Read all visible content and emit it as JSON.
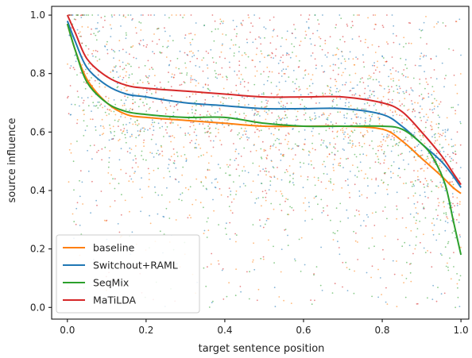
{
  "chart_data": {
    "type": "line",
    "xlabel": "target sentence position",
    "ylabel": "source influence",
    "xlim": [
      -0.04,
      1.02
    ],
    "ylim": [
      -0.04,
      1.03
    ],
    "xticks": [
      "0.0",
      "0.2",
      "0.4",
      "0.6",
      "0.8",
      "1.0"
    ],
    "yticks": [
      "0.0",
      "0.2",
      "0.4",
      "0.6",
      "0.8",
      "1.0"
    ],
    "grid": false,
    "legend_position": "lower-left",
    "series": [
      {
        "name": "baseline",
        "color": "#ff7f0e",
        "x": [
          0.0,
          0.02,
          0.05,
          0.1,
          0.15,
          0.2,
          0.3,
          0.4,
          0.5,
          0.6,
          0.7,
          0.8,
          0.85,
          0.9,
          0.95,
          0.98,
          1.0
        ],
        "y": [
          0.97,
          0.88,
          0.78,
          0.7,
          0.66,
          0.65,
          0.64,
          0.63,
          0.62,
          0.62,
          0.62,
          0.61,
          0.57,
          0.51,
          0.45,
          0.41,
          0.39
        ]
      },
      {
        "name": "Switchout+RAML",
        "color": "#1f77b4",
        "x": [
          0.0,
          0.02,
          0.05,
          0.1,
          0.15,
          0.2,
          0.3,
          0.4,
          0.5,
          0.6,
          0.7,
          0.8,
          0.85,
          0.9,
          0.95,
          0.98,
          1.0
        ],
        "y": [
          0.98,
          0.91,
          0.82,
          0.76,
          0.73,
          0.72,
          0.7,
          0.69,
          0.68,
          0.68,
          0.68,
          0.66,
          0.62,
          0.56,
          0.5,
          0.45,
          0.41
        ]
      },
      {
        "name": "SeqMix",
        "color": "#2ca02c",
        "x": [
          0.0,
          0.02,
          0.05,
          0.1,
          0.15,
          0.2,
          0.3,
          0.4,
          0.5,
          0.6,
          0.7,
          0.8,
          0.85,
          0.9,
          0.93,
          0.96,
          0.98,
          1.0
        ],
        "y": [
          0.97,
          0.88,
          0.77,
          0.7,
          0.67,
          0.66,
          0.65,
          0.65,
          0.63,
          0.62,
          0.62,
          0.62,
          0.61,
          0.56,
          0.51,
          0.42,
          0.3,
          0.18
        ]
      },
      {
        "name": "MaTiLDA",
        "color": "#d62728",
        "x": [
          0.0,
          0.02,
          0.05,
          0.1,
          0.15,
          0.2,
          0.3,
          0.4,
          0.5,
          0.6,
          0.7,
          0.8,
          0.85,
          0.9,
          0.95,
          0.98,
          1.0
        ],
        "y": [
          1.0,
          0.94,
          0.85,
          0.79,
          0.76,
          0.75,
          0.74,
          0.73,
          0.72,
          0.72,
          0.72,
          0.7,
          0.67,
          0.6,
          0.52,
          0.46,
          0.42
        ]
      }
    ]
  }
}
